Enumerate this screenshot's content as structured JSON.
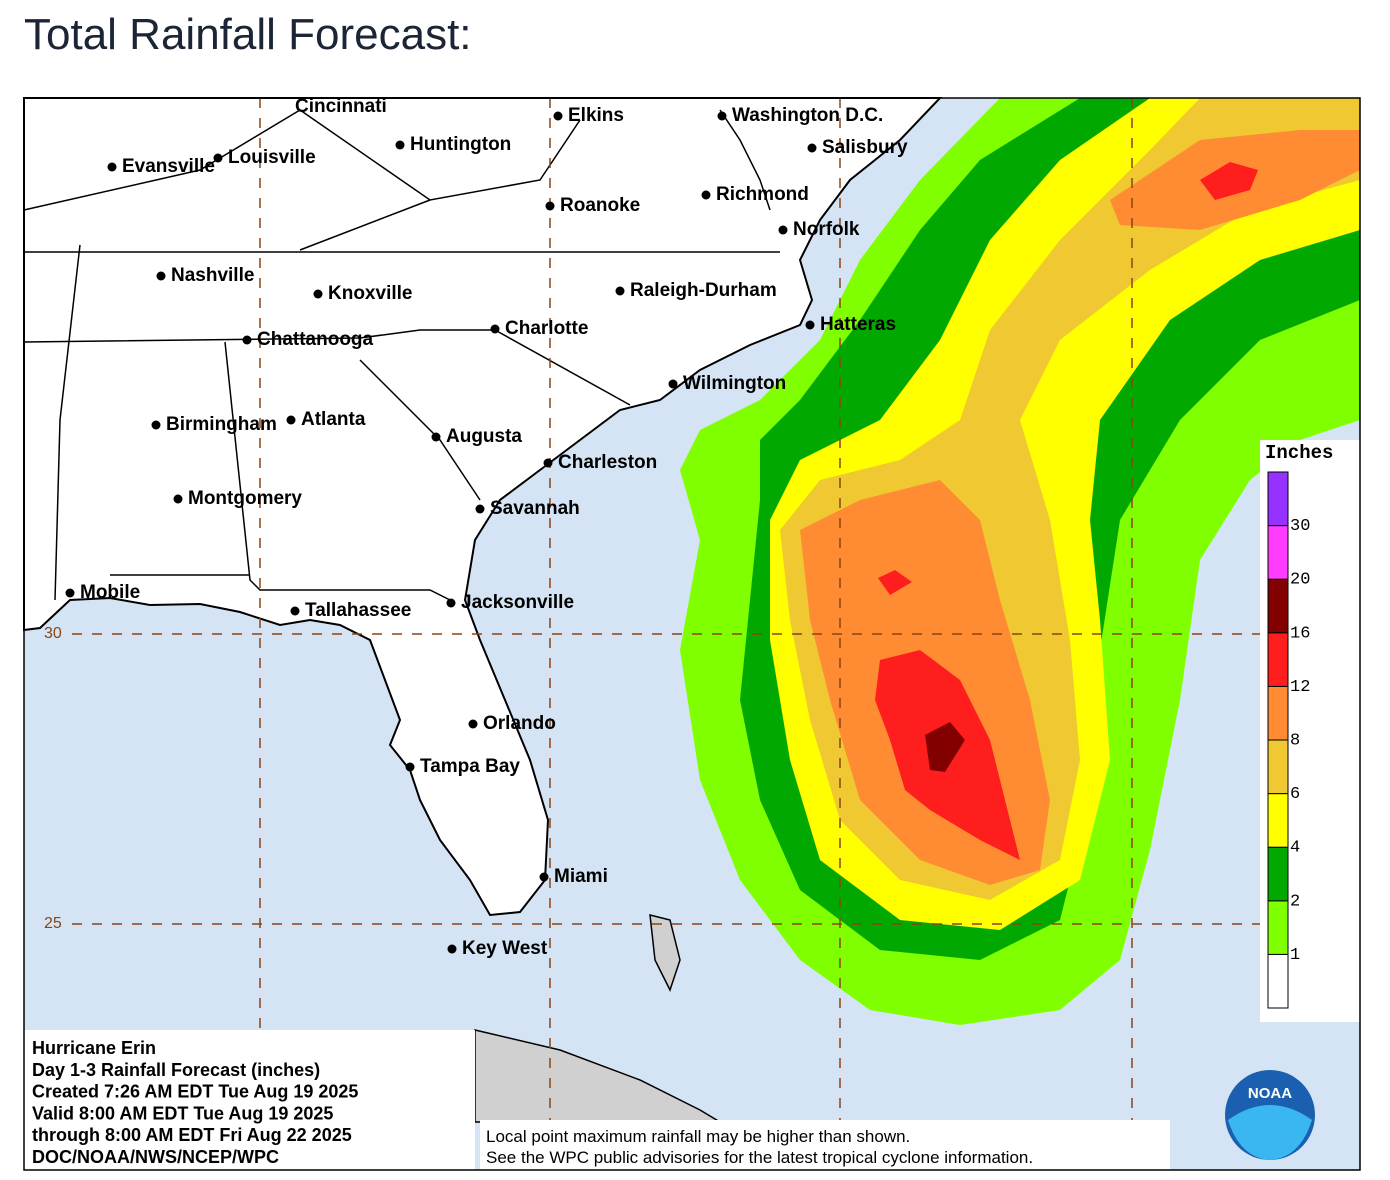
{
  "title": "Total Rainfall Forecast:",
  "map": {
    "cities": [
      "Cincinnati",
      "Elkins",
      "Washington D.C.",
      "Huntington",
      "Louisville",
      "Evansville",
      "Salisbury",
      "Roanoke",
      "Richmond",
      "Norfolk",
      "Nashville",
      "Knoxville",
      "Raleigh-Durham",
      "Chattanooga",
      "Charlotte",
      "Hatteras",
      "Wilmington",
      "Birmingham",
      "Atlanta",
      "Augusta",
      "Charleston",
      "Montgomery",
      "Savannah",
      "Mobile",
      "Tallahassee",
      "Jacksonville",
      "Orlando",
      "Tampa Bay",
      "Miami",
      "Key West"
    ],
    "latitudes": [
      30,
      25
    ],
    "legend": {
      "title": "Inches",
      "ticks": [
        1,
        2,
        4,
        6,
        8,
        12,
        16,
        20,
        30
      ],
      "colors": [
        "#ffffff",
        "#7fff00",
        "#00a800",
        "#ffff00",
        "#f0c832",
        "#ff8c32",
        "#ff1e1e",
        "#820000",
        "#ff3cff",
        "#9632ff"
      ]
    },
    "info": [
      "Hurricane Erin",
      "Day 1-3 Rainfall Forecast (inches)",
      "Created 7:26 AM EDT Tue Aug 19 2025",
      "Valid 8:00 AM EDT Tue Aug 19 2025",
      "through 8:00 AM EDT Fri Aug 22 2025",
      "DOC/NOAA/NWS/NCEP/WPC"
    ],
    "disclaimer": [
      "Local point maximum rainfall may be higher than shown.",
      "See the WPC public advisories for the latest tropical cyclone information."
    ],
    "logo": "NOAA"
  }
}
